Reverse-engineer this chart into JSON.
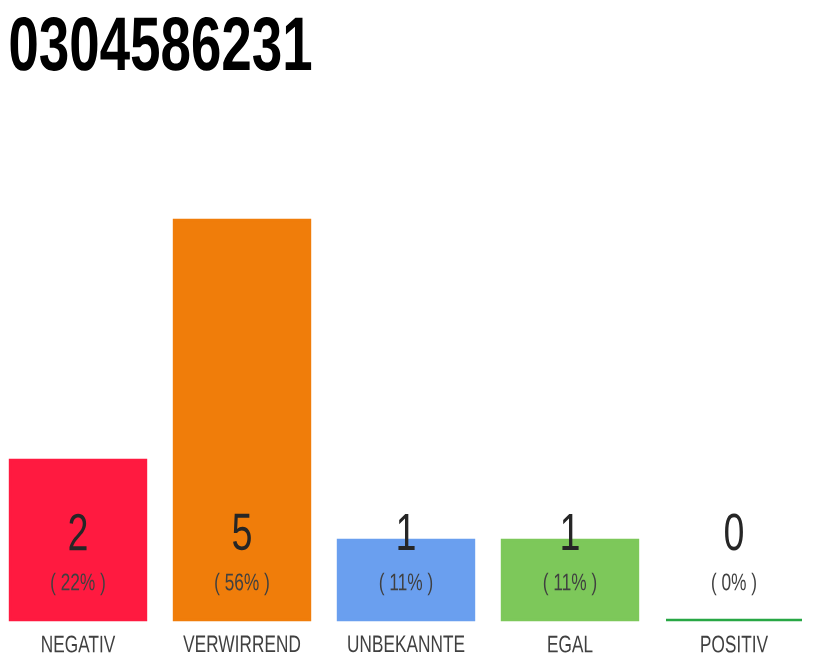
{
  "chart_data": {
    "type": "bar",
    "title": "0304586231",
    "categories": [
      "NEGATIV",
      "VERWIRREND",
      "UNBEKANNTE",
      "EGAL",
      "POSITIV"
    ],
    "values": [
      2,
      5,
      1,
      1,
      0
    ],
    "colors": [
      "#ff1a40",
      "#f07d0a",
      "#6a9fef",
      "#7dc85a",
      "#28a745"
    ],
    "ylim": [
      0,
      5
    ],
    "data_labels": true,
    "tick_labels": "x",
    "annotations": [
      "( 22% )",
      "( 56% )",
      "( 11% )",
      "( 11% )",
      "( 0% )"
    ]
  }
}
